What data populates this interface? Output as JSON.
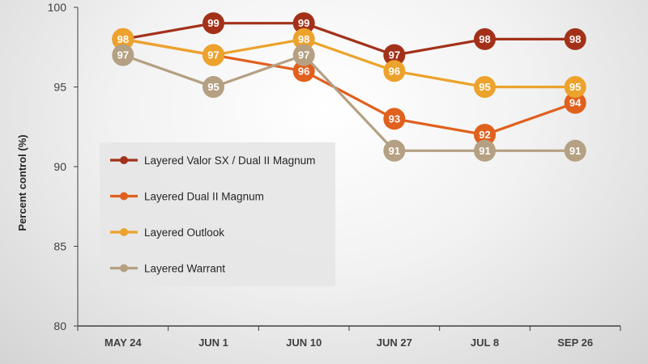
{
  "chart_data": {
    "type": "line",
    "categories": [
      "MAY 24",
      "JUN 1",
      "JUN 10",
      "JUN 27",
      "JUL 8",
      "SEP 26"
    ],
    "ylabel": "Percent control (%)",
    "xlabel": "",
    "ylim": [
      80,
      100
    ],
    "yticks": [
      80,
      85,
      90,
      95,
      100
    ],
    "grid": false,
    "legend_position": "left-middle",
    "series": [
      {
        "name": "Layered Valor SX / Dual II Magnum",
        "color": "#a3311a",
        "values": [
          98,
          99,
          99,
          97,
          98,
          98
        ]
      },
      {
        "name": "Layered Dual II Magnum",
        "color": "#e0601e",
        "values": [
          98,
          97,
          96,
          93,
          92,
          94
        ]
      },
      {
        "name": "Layered Outlook",
        "color": "#eca22b",
        "values": [
          98,
          97,
          98,
          96,
          95,
          95
        ]
      },
      {
        "name": "Layered Warrant",
        "color": "#b5a083",
        "values": [
          97,
          95,
          97,
          91,
          91,
          91
        ]
      }
    ]
  }
}
